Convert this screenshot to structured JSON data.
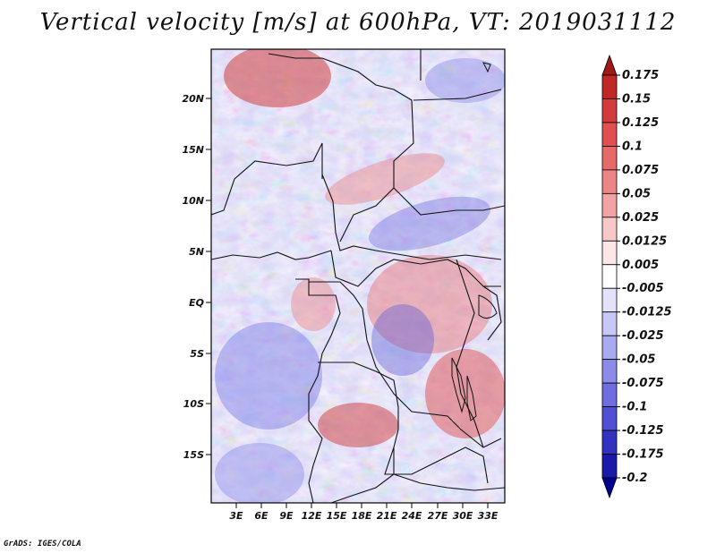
{
  "title": "Vertical velocity [m/s] at 600hPa, VT: 2019031112",
  "footer": "GrADS: IGES/COLA",
  "map": {
    "lat_labels": [
      "20N",
      "15N",
      "10N",
      "5N",
      "EQ",
      "5S",
      "10S",
      "15S"
    ],
    "lon_labels": [
      "3E",
      "6E",
      "9E",
      "12E",
      "15E",
      "18E",
      "21E",
      "24E",
      "27E",
      "30E",
      "33E"
    ]
  },
  "colorbar": {
    "labels": [
      "0.175",
      "0.15",
      "0.125",
      "0.1",
      "0.075",
      "0.05",
      "0.025",
      "0.0125",
      "0.005",
      "-0.005",
      "-0.0125",
      "-0.025",
      "-0.05",
      "-0.075",
      "-0.1",
      "-0.125",
      "-0.175",
      "-0.2"
    ],
    "colors": [
      "#a01818",
      "#c02828",
      "#d23c3c",
      "#e05050",
      "#e66a6a",
      "#ec8686",
      "#f2a4a4",
      "#f8c8c8",
      "#fce6e6",
      "#ffffff",
      "#e2e2fa",
      "#c8c8f6",
      "#aaaaf0",
      "#8c8ce8",
      "#6e6ee0",
      "#5050d2",
      "#3232c0",
      "#1a1aa8",
      "#000090"
    ]
  }
}
